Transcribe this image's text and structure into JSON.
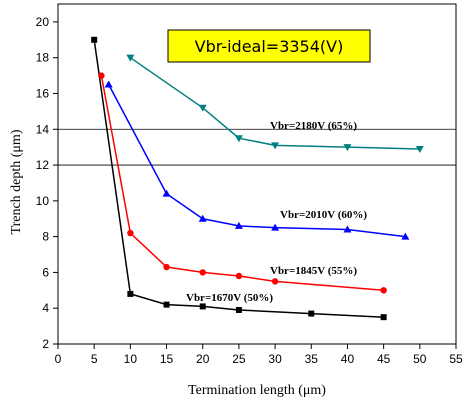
{
  "chart_data": {
    "type": "line",
    "xlabel": "Termination length (μm)",
    "ylabel": "Trench depth (μm)",
    "xlim": [
      0,
      55
    ],
    "ylim": [
      2,
      21
    ],
    "xticks": [
      0,
      5,
      10,
      15,
      20,
      25,
      30,
      35,
      40,
      45,
      50,
      55
    ],
    "yticks": [
      2,
      4,
      6,
      8,
      10,
      12,
      14,
      16,
      18,
      20
    ],
    "grid": false,
    "reference_lines_y": [
      14,
      12
    ],
    "annotation": "Vbr-ideal=3354(V)",
    "colors": {
      "annotation_fill": "#ffff00",
      "plot_background": "#ffffff",
      "axis": "#000000"
    },
    "series": [
      {
        "name": "Vbr=1670V (50%)",
        "color": "#000000",
        "marker": "square",
        "x": [
          5,
          10,
          15,
          20,
          25,
          35,
          45
        ],
        "y": [
          19.0,
          4.8,
          4.2,
          4.1,
          3.9,
          3.7,
          3.5
        ]
      },
      {
        "name": "Vbr=1845V (55%)",
        "color": "#ff0000",
        "marker": "circle",
        "x": [
          6,
          10,
          15,
          20,
          25,
          30,
          45
        ],
        "y": [
          17.0,
          8.2,
          6.3,
          6.0,
          5.8,
          5.5,
          5.0
        ]
      },
      {
        "name": "Vbr=2010V (60%)",
        "color": "#0000ff",
        "marker": "triangle-up",
        "x": [
          7,
          15,
          20,
          25,
          30,
          40,
          48
        ],
        "y": [
          16.5,
          10.4,
          9.0,
          8.6,
          8.5,
          8.4,
          8.0
        ]
      },
      {
        "name": "Vbr=2180V (65%)",
        "color": "#008080",
        "marker": "triangle-down",
        "x": [
          10,
          20,
          25,
          30,
          40,
          50
        ],
        "y": [
          18.0,
          15.2,
          13.5,
          13.1,
          13.0,
          12.9
        ]
      }
    ]
  }
}
